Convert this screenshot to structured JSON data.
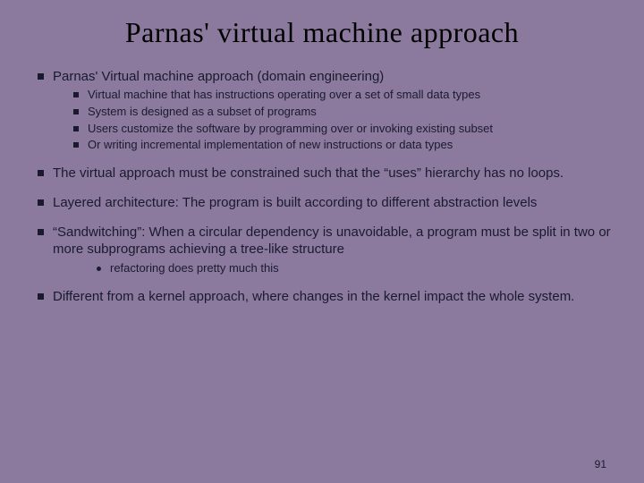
{
  "title": "Parnas' virtual machine approach",
  "bullets": [
    {
      "text": "Parnas' Virtual machine approach (domain engineering)",
      "sub": [
        "Virtual machine that has instructions operating over a set of small data types",
        "System is designed as a subset of programs",
        "Users customize the software by programming over or invoking existing subset",
        "Or writing incremental implementation of new instructions or data types"
      ]
    },
    {
      "text": "The virtual approach must be constrained such that the “uses” hierarchy has no loops."
    },
    {
      "text": "Layered architecture: The program is built according to different abstraction levels"
    },
    {
      "text": "“Sandwitching”: When a circular dependency is unavoidable, a program must be split in two or more subprograms achieving a tree-like structure",
      "note": "refactoring does pretty much this"
    },
    {
      "text": "Different from a kernel approach, where changes in the kernel impact the whole system."
    }
  ],
  "page_number": "91",
  "colors": {
    "background": "#8b7a9e",
    "text": "#1a1a2e",
    "title": "#000000"
  },
  "fontsizes": {
    "title": 32,
    "l1": 15,
    "l2": 13,
    "note": 13,
    "pagenum": 12
  }
}
